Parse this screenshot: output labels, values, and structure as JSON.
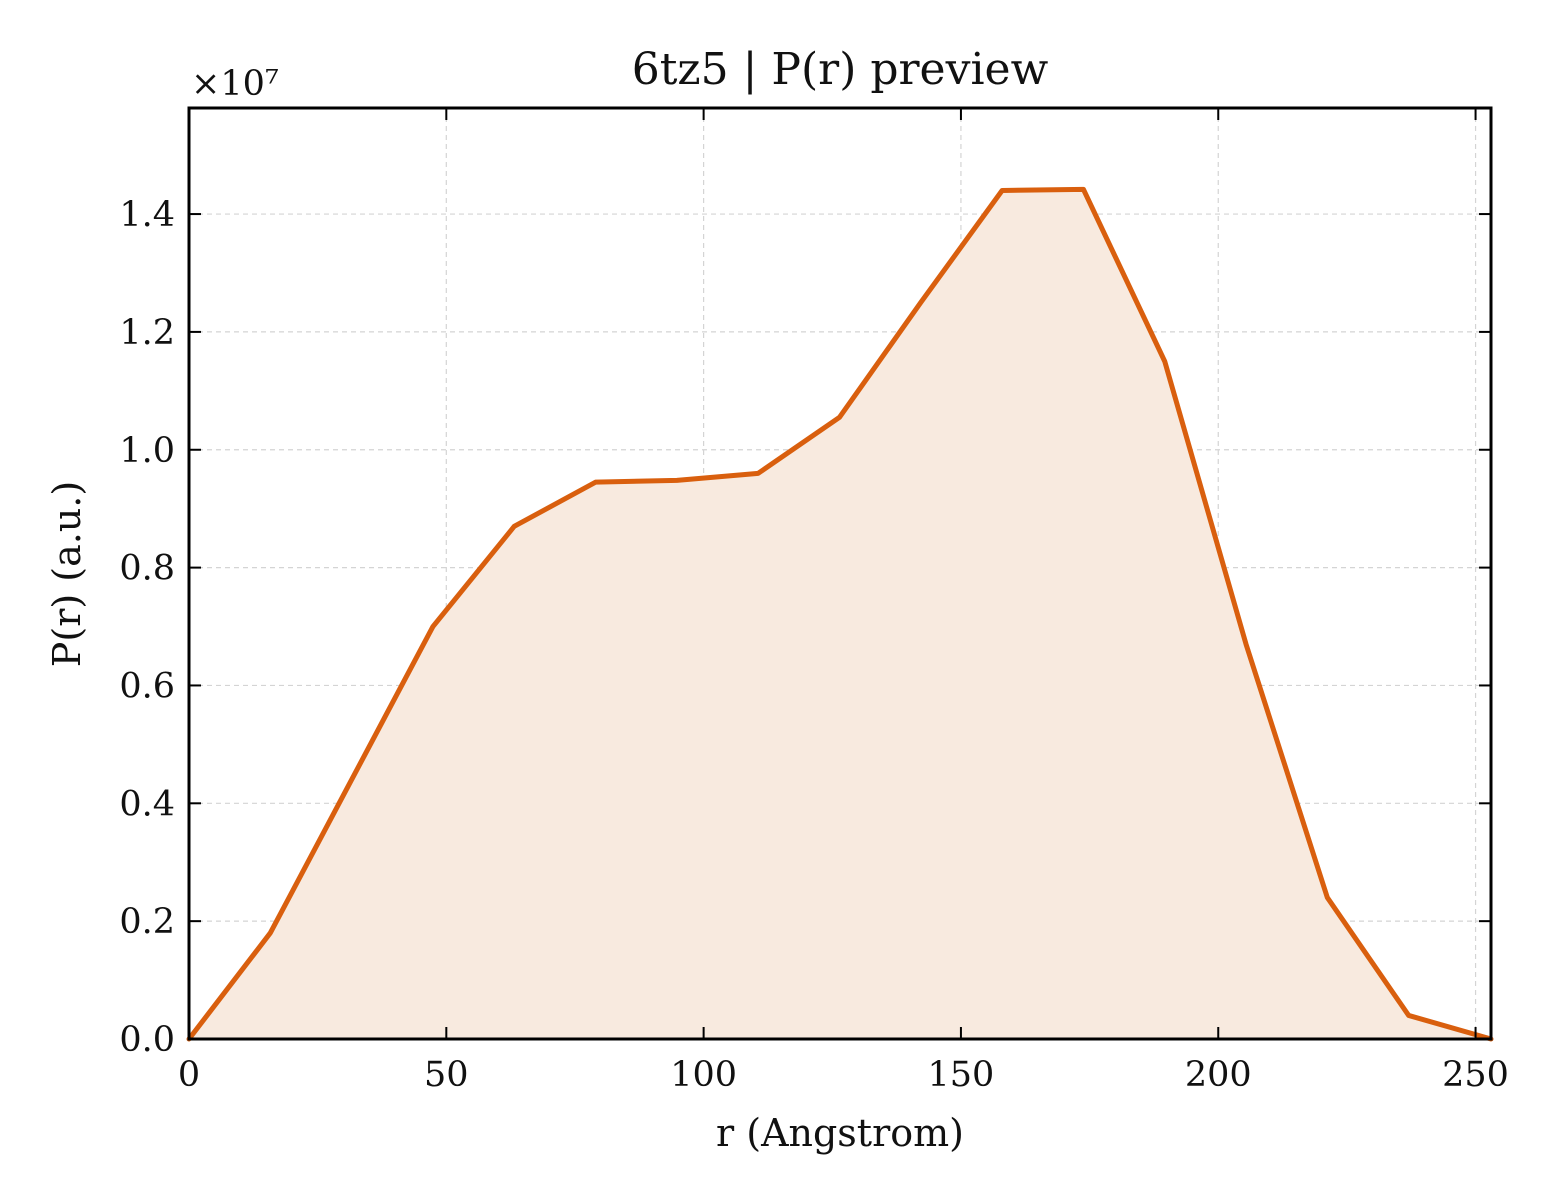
{
  "chart_data": {
    "type": "area",
    "title": "6tz5 | P(r) preview",
    "xlabel": "r (Angstrom)",
    "ylabel": "P(r) (a.u.)",
    "y_offset_label": "×10⁷",
    "y_scale": 10000000,
    "xlim": [
      0,
      253
    ],
    "ylim": [
      0,
      1.58
    ],
    "x_ticks": [
      0,
      50,
      100,
      150,
      200,
      250
    ],
    "x_tick_labels": [
      "0",
      "50",
      "100",
      "150",
      "200",
      "250"
    ],
    "y_ticks": [
      0,
      0.2,
      0.4,
      0.6,
      0.8,
      1.0,
      1.2,
      1.4
    ],
    "y_tick_labels": [
      "0.0",
      "0.2",
      "0.4",
      "0.6",
      "0.8",
      "1.0",
      "1.2",
      "1.4"
    ],
    "grid": true,
    "series": [
      {
        "color": "#d95f0e",
        "fill_color": "#f8eadf",
        "x": [
          0,
          15.8,
          31.6,
          47.4,
          63.2,
          79.0,
          94.8,
          110.6,
          126.4,
          142.2,
          158.0,
          173.8,
          189.6,
          205.4,
          221.2,
          237.0,
          253.0
        ],
        "y": [
          0.0,
          0.18,
          0.44,
          0.7,
          0.87,
          0.945,
          0.948,
          0.96,
          1.055,
          1.25,
          1.44,
          1.442,
          1.15,
          0.67,
          0.24,
          0.04,
          0.0
        ]
      }
    ]
  }
}
